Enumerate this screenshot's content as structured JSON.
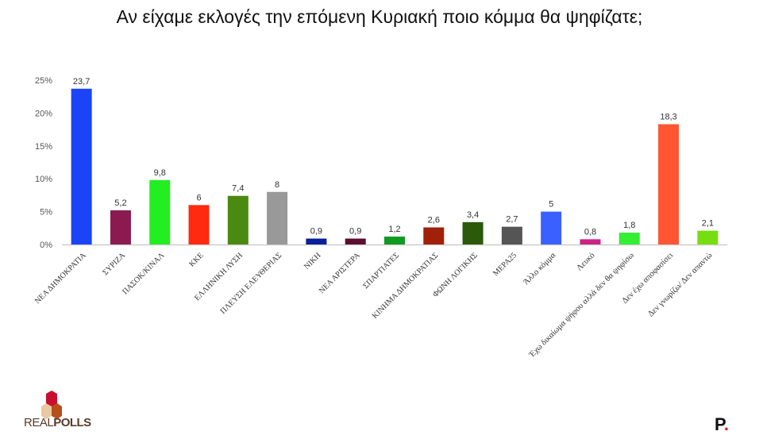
{
  "chart_data": {
    "type": "bar",
    "title": "Αν είχαμε εκλογές την επόμενη Κυριακή ποιο κόμμα θα ψηφίζατε;",
    "xlabel": "",
    "ylabel": "",
    "ylim": [
      0,
      25
    ],
    "yticks": [
      0,
      5,
      10,
      15,
      20,
      25
    ],
    "ytick_labels": [
      "0%",
      "5%",
      "10%",
      "15%",
      "20%",
      "25%"
    ],
    "grid": false,
    "categories": [
      "ΝΕΑ ΔΗΜΟΚΡΑΤΙΑ",
      "ΣΥΡΙΖΑ",
      "ΠΑΣΟΚ/ΚΙΝΑΛ",
      "ΚΚΕ",
      "ΕΛΛΗΝΙΚΗ ΛΥΣΗ",
      "ΠΛΕΥΣΗ ΕΛΕΥΘΕΡΙΑΣ",
      "ΝΙΚΗ",
      "ΝΕΑ ΑΡΙΣΤΕΡΑ",
      "ΣΠΑΡΤΙΑΤΕΣ",
      "ΚΙΝΗΜΑ ΔΗΜΟΚΡΑΤΙΑΣ",
      "ΦΩΝΗ ΛΟΓΙΚΗΣ",
      "ΜΕΡΑ25",
      "Άλλο κόμμα",
      "Λευκό",
      "Έχω δικαίωμα ψήφου αλλά δεν θα ψηφίσω",
      "Δεν έχω αποφασίσει",
      "Δεν γνωρίζω/ Δεν απαντώ"
    ],
    "values": [
      23.7,
      5.2,
      9.8,
      6,
      7.4,
      8,
      0.9,
      0.9,
      1.2,
      2.6,
      3.4,
      2.7,
      5,
      0.8,
      1.8,
      18.3,
      2.1
    ],
    "data_labels": [
      "23,7",
      "5,2",
      "9,8",
      "6",
      "7,4",
      "8",
      "0,9",
      "0,9",
      "1,2",
      "2,6",
      "3,4",
      "2,7",
      "5",
      "0,8",
      "1,8",
      "18,3",
      "2,1"
    ],
    "colors": [
      "#1a44f5",
      "#8b1a50",
      "#22ee22",
      "#ff2a10",
      "#4a8a10",
      "#999999",
      "#0a1f9a",
      "#5a0f30",
      "#119a22",
      "#a0200a",
      "#2a5a0a",
      "#555555",
      "#3a60ff",
      "#cc2288",
      "#33ee33",
      "#ff5533",
      "#77dd11"
    ]
  },
  "logos": {
    "left": "REALPOLLS",
    "left_bold": "POLLS",
    "left_light": "REAL",
    "right": "P"
  }
}
